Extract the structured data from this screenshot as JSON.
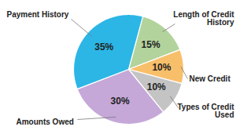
{
  "chart_data": {
    "type": "pie",
    "categories": [
      "Length of Credit History",
      "New Credit",
      "Types of Credit Used",
      "Amounts Owed",
      "Payment History"
    ],
    "values": [
      15,
      10,
      10,
      30,
      35
    ],
    "value_labels": [
      "15%",
      "10%",
      "10%",
      "30%",
      "35%"
    ],
    "colors": [
      "#b3d39c",
      "#f8bf6b",
      "#c4c4c4",
      "#c5a8d8",
      "#2bb6e6"
    ],
    "data_labels": true
  }
}
